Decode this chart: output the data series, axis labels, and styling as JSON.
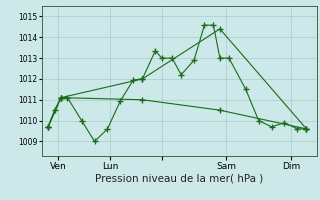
{
  "background_color": "#cce8e8",
  "grid_color": "#aacccc",
  "line_color": "#1a6b1a",
  "marker_color": "#1a6b1a",
  "xlabel": "Pression niveau de la mer( hPa )",
  "ylim": [
    1008.3,
    1015.5
  ],
  "yticks": [
    1009,
    1010,
    1011,
    1012,
    1013,
    1014,
    1015
  ],
  "xlim": [
    -0.3,
    21.0
  ],
  "xtick_positions": [
    1,
    5,
    9,
    14,
    19
  ],
  "xtick_labels": [
    "Ven",
    "Lun",
    "",
    "Sam",
    "Dim"
  ],
  "series1_x": [
    0.2,
    0.7,
    1.2,
    1.7,
    2.8,
    3.8,
    4.8,
    5.8,
    6.8,
    7.5,
    8.5,
    9.0,
    9.8,
    10.5,
    11.5,
    12.3,
    13.0,
    13.5,
    14.2,
    15.5,
    16.5,
    17.5,
    18.5,
    19.5,
    20.2
  ],
  "series1_y": [
    1009.7,
    1010.5,
    1011.1,
    1011.1,
    1010.0,
    1009.0,
    1009.6,
    1010.95,
    1011.95,
    1012.0,
    1013.35,
    1013.0,
    1013.0,
    1012.2,
    1012.9,
    1014.58,
    1014.58,
    1013.0,
    1013.0,
    1011.5,
    1010.0,
    1009.7,
    1009.9,
    1009.6,
    1009.6
  ],
  "series2_x": [
    0.2,
    1.2,
    7.5,
    13.5,
    20.2
  ],
  "series2_y": [
    1009.7,
    1011.1,
    1012.0,
    1014.4,
    1009.6
  ],
  "series3_x": [
    0.2,
    1.2,
    7.5,
    13.5,
    20.2
  ],
  "series3_y": [
    1009.7,
    1011.1,
    1011.0,
    1010.5,
    1009.6
  ],
  "xlabel_fontsize": 7.5,
  "ytick_fontsize": 5.5,
  "xtick_fontsize": 6.5
}
